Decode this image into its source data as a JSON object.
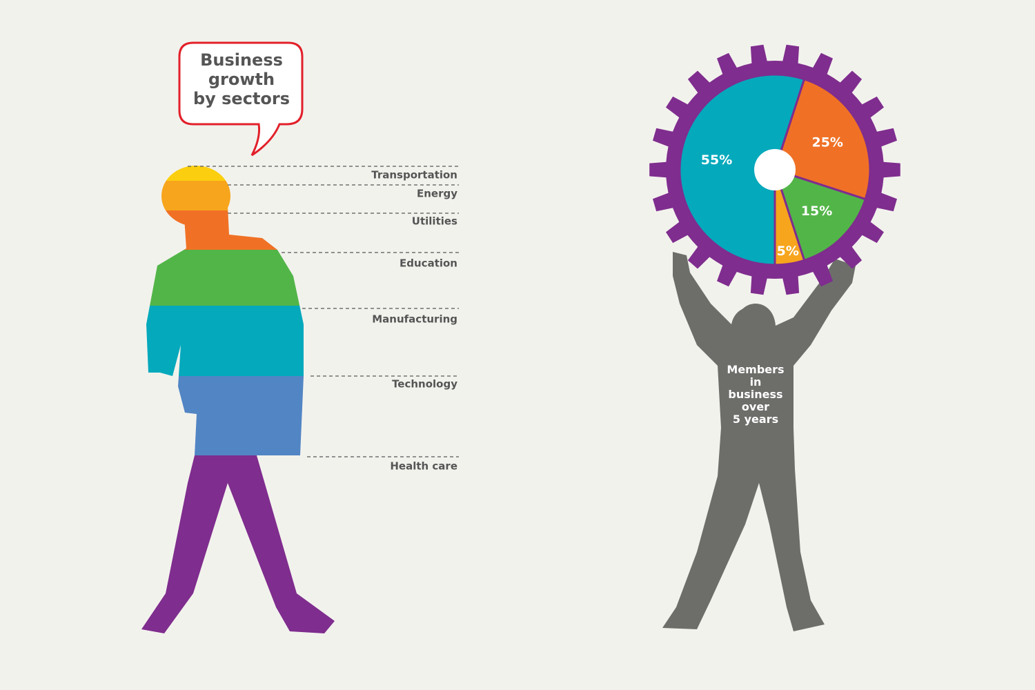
{
  "title_lines": [
    "Business",
    "growth",
    "by sectors"
  ],
  "sectors": [
    {
      "name": "Transportation",
      "color": "#fbcf0f"
    },
    {
      "name": "Energy",
      "color": "#f7a51c"
    },
    {
      "name": "Utilities",
      "color": "#f07125"
    },
    {
      "name": "Education",
      "color": "#52b548"
    },
    {
      "name": "Manufacturing",
      "color": "#05a9bc"
    },
    {
      "name": "Technology",
      "color": "#5285c4"
    },
    {
      "name": "Health care",
      "color": "#7f2d8e"
    }
  ],
  "chart_data": {
    "type": "pie",
    "values": [
      55,
      25,
      15,
      5
    ],
    "value_labels": [
      "55%",
      "25%",
      "15%",
      "5%"
    ],
    "colors": [
      "#05a9bc",
      "#f07125",
      "#52b548",
      "#f7a51c"
    ],
    "caption_lines": [
      "Members",
      "in",
      "business",
      "over",
      "5 years"
    ]
  }
}
